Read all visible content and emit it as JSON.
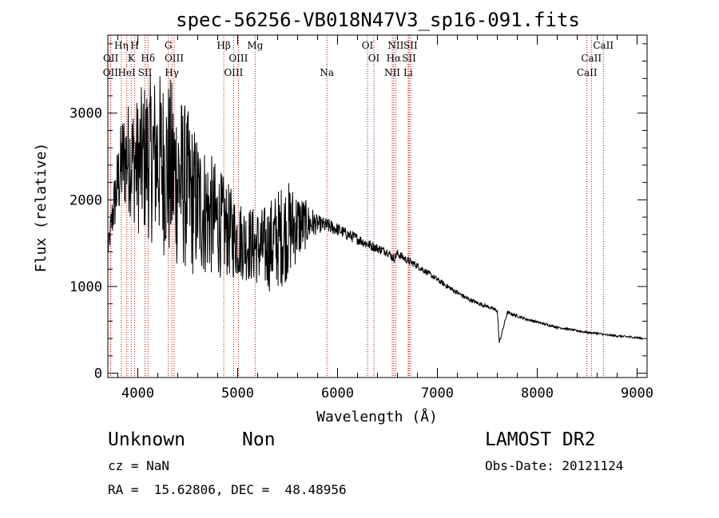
{
  "chart_data": {
    "type": "line",
    "title": "spec-56256-VB018N47V3_sp16-091.fits",
    "xlabel": "Wavelength (Å)",
    "ylabel": "Flux (relative)",
    "xlim": [
      3700,
      9100
    ],
    "ylim": [
      -50,
      3900
    ],
    "x_ticks": [
      4000,
      5000,
      6000,
      7000,
      8000,
      9000
    ],
    "y_ticks": [
      0,
      1000,
      2000,
      3000
    ],
    "grid": false,
    "series": [
      {
        "x": [
          3700,
          3750,
          3800,
          3850,
          3900,
          3950,
          4000,
          4050,
          4100,
          4150,
          4200,
          4250,
          4300,
          4350,
          4400,
          4450,
          4500,
          4550,
          4600,
          4650,
          4700,
          4750,
          4800,
          4850,
          4900,
          4950,
          5000,
          5050,
          5100,
          5150,
          5200,
          5250,
          5300,
          5350,
          5400,
          5450,
          5500,
          5550,
          5600,
          5650,
          5700,
          5750,
          5800,
          5900,
          6000,
          6100,
          6200,
          6300,
          6400,
          6500,
          6563,
          6600,
          6700,
          6800,
          6900,
          7000,
          7100,
          7200,
          7300,
          7400,
          7500,
          7600,
          7620,
          7700,
          7800,
          7900,
          8000,
          8100,
          8200,
          8300,
          8400,
          8500,
          8600,
          8700,
          8800,
          8900,
          9000,
          9060
        ],
        "y": [
          1400,
          1850,
          2200,
          2450,
          2500,
          2450,
          2400,
          2450,
          2500,
          2480,
          2500,
          2420,
          2350,
          2300,
          2250,
          2200,
          2100,
          2000,
          1950,
          1900,
          1850,
          1800,
          1750,
          1700,
          1650,
          1600,
          1550,
          1530,
          1500,
          1480,
          1460,
          1440,
          1450,
          1500,
          1550,
          1600,
          1650,
          1680,
          1700,
          1710,
          1720,
          1730,
          1720,
          1700,
          1660,
          1600,
          1550,
          1490,
          1440,
          1400,
          1320,
          1380,
          1300,
          1240,
          1160,
          1080,
          1000,
          930,
          860,
          810,
          770,
          720,
          350,
          700,
          660,
          620,
          590,
          560,
          530,
          510,
          490,
          470,
          460,
          440,
          430,
          420,
          410,
          400
        ],
        "noise_amp": [
          80,
          300,
          450,
          600,
          650,
          700,
          800,
          900,
          950,
          1000,
          1000,
          1050,
          1100,
          1100,
          1050,
          1000,
          950,
          900,
          850,
          800,
          750,
          700,
          650,
          600,
          550,
          520,
          480,
          460,
          450,
          450,
          450,
          480,
          520,
          560,
          580,
          600,
          580,
          500,
          420,
          350,
          250,
          180,
          100,
          90,
          75,
          70,
          65,
          60,
          55,
          50,
          50,
          50,
          45,
          40,
          35,
          32,
          30,
          28,
          26,
          24,
          22,
          20,
          20,
          20,
          18,
          16,
          15,
          14,
          13,
          12,
          12,
          12,
          12,
          12,
          12,
          12,
          12,
          12
        ]
      }
    ],
    "spectral_lines": [
      {
        "label": "OII",
        "wavelength": 3727,
        "row": 3
      },
      {
        "label": "OII",
        "wavelength": 3729,
        "row": 2
      },
      {
        "label": "Hη",
        "wavelength": 3835,
        "row": 1
      },
      {
        "label": "HeI",
        "wavelength": 3889,
        "row": 3
      },
      {
        "label": "K",
        "wavelength": 3934,
        "row": 2
      },
      {
        "label": "H",
        "wavelength": 3969,
        "row": 1
      },
      {
        "label": "SII",
        "wavelength": 4072,
        "row": 3
      },
      {
        "label": "Hδ",
        "wavelength": 4102,
        "row": 2
      },
      {
        "label": "G",
        "wavelength": 4305,
        "row": 1
      },
      {
        "label": "Hγ",
        "wavelength": 4341,
        "row": 3
      },
      {
        "label": "OIII",
        "wavelength": 4364,
        "row": 2
      },
      {
        "label": "Hβ",
        "wavelength": 4861,
        "row": 1
      },
      {
        "label": "OIII",
        "wavelength": 4959,
        "row": 3
      },
      {
        "label": "OIII",
        "wavelength": 5007,
        "row": 2
      },
      {
        "label": "Mg",
        "wavelength": 5175,
        "row": 1
      },
      {
        "label": "Na",
        "wavelength": 5894,
        "row": 3
      },
      {
        "label": "OI",
        "wavelength": 6300,
        "row": 1
      },
      {
        "label": "OI",
        "wavelength": 6364,
        "row": 2
      },
      {
        "label": "NII",
        "wavelength": 6548,
        "row": 3
      },
      {
        "label": "Hα",
        "wavelength": 6563,
        "row": 2
      },
      {
        "label": "NII",
        "wavelength": 6583,
        "row": 1
      },
      {
        "label": "Li",
        "wavelength": 6707,
        "row": 3
      },
      {
        "label": "SII",
        "wavelength": 6716,
        "row": 2
      },
      {
        "label": "SII",
        "wavelength": 6731,
        "row": 1
      },
      {
        "label": "CaII",
        "wavelength": 8498,
        "row": 3
      },
      {
        "label": "CaII",
        "wavelength": 8542,
        "row": 2
      },
      {
        "label": "CaII",
        "wavelength": 8662,
        "row": 1
      }
    ],
    "line_color": "#000000",
    "marker_color": "#cc0000"
  },
  "info": {
    "object_class": "Unknown",
    "subclass": "Non",
    "survey": "LAMOST DR2",
    "redshift": "cz = NaN",
    "obs_date": "Obs-Date: 20121124",
    "coords": "RA =  15.62806, DEC =  48.48956"
  }
}
